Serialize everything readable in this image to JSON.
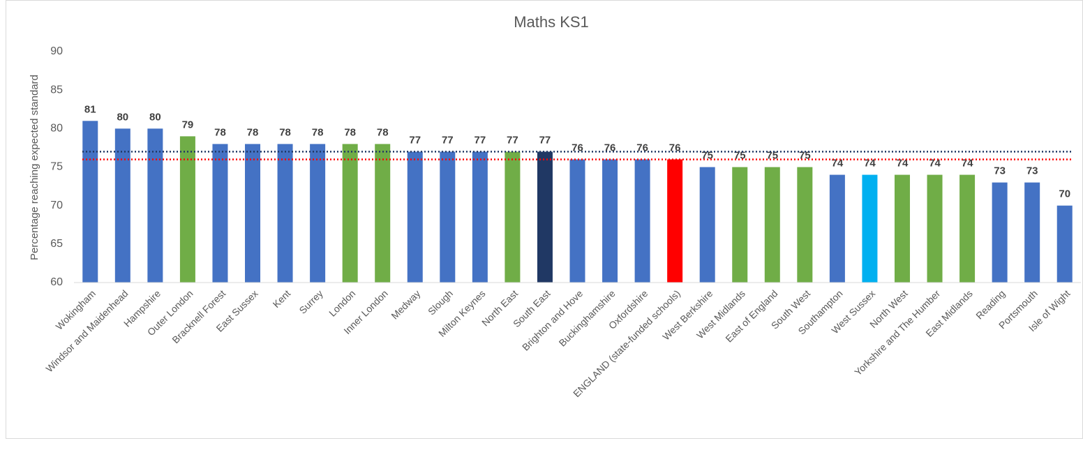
{
  "chart_data": {
    "type": "bar",
    "title": "Maths KS1",
    "y_label": "Percentage reaching expected standard",
    "categories": [
      "Wokingham",
      "Windsor and Maidenhead",
      "Hampshire",
      "Outer London",
      "Bracknell Forest",
      "East Sussex",
      "Kent",
      "Surrey",
      "London",
      "Inner London",
      "Medway",
      "Slough",
      "Milton Keynes",
      "North East",
      "South East",
      "Brighton and Hove",
      "Buckinghamshire",
      "Oxfordshire",
      "ENGLAND (state-funded schools)",
      "West Berkshire",
      "West Midlands",
      "East of England",
      "South West",
      "Southampton",
      "West Sussex",
      "North West",
      "Yorkshire and The Humber",
      "East Midlands",
      "Reading",
      "Portsmouth",
      "Isle of Wight"
    ],
    "values": [
      81,
      80,
      80,
      79,
      78,
      78,
      78,
      78,
      78,
      78,
      77,
      77,
      77,
      77,
      77,
      76,
      76,
      76,
      76,
      75,
      75,
      75,
      75,
      74,
      74,
      74,
      74,
      74,
      73,
      73,
      70
    ],
    "colors": [
      "#4472c4",
      "#4472c4",
      "#4472c4",
      "#70ad47",
      "#4472c4",
      "#4472c4",
      "#4472c4",
      "#4472c4",
      "#70ad47",
      "#70ad47",
      "#4472c4",
      "#4472c4",
      "#4472c4",
      "#70ad47",
      "#203864",
      "#4472c4",
      "#4472c4",
      "#4472c4",
      "#ff0000",
      "#4472c4",
      "#70ad47",
      "#70ad47",
      "#70ad47",
      "#4472c4",
      "#00b0f0",
      "#70ad47",
      "#70ad47",
      "#70ad47",
      "#4472c4",
      "#4472c4",
      "#4472c4"
    ],
    "reference_lines": [
      {
        "value": 77,
        "color": "#203864"
      },
      {
        "value": 76,
        "color": "#ff0000"
      }
    ],
    "ylim": [
      60,
      90
    ],
    "yticks": [
      60,
      65,
      70,
      75,
      80,
      85,
      90
    ],
    "grid": false
  }
}
